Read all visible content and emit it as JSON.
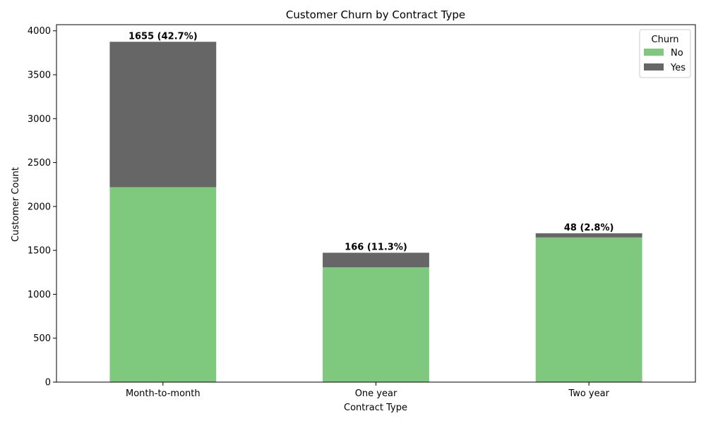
{
  "chart_data": {
    "type": "bar",
    "stacked": true,
    "title": "Customer Churn by Contract Type",
    "xlabel": "Contract Type",
    "ylabel": "Customer Count",
    "categories": [
      "Month-to-month",
      "One year",
      "Two year"
    ],
    "series": [
      {
        "name": "No",
        "values": [
          2220,
          1307,
          1647
        ],
        "color": "#7fc97f"
      },
      {
        "name": "Yes",
        "values": [
          1655,
          166,
          48
        ],
        "color": "#666666"
      }
    ],
    "annotations": [
      "1655 (42.7%)",
      "166 (11.3%)",
      "48 (2.8%)"
    ],
    "ylim": [
      0,
      4070
    ],
    "yticks": [
      0,
      500,
      1000,
      1500,
      2000,
      2500,
      3000,
      3500,
      4000
    ],
    "grid": false,
    "legend": {
      "title": "Churn",
      "placement": "top-right"
    }
  }
}
